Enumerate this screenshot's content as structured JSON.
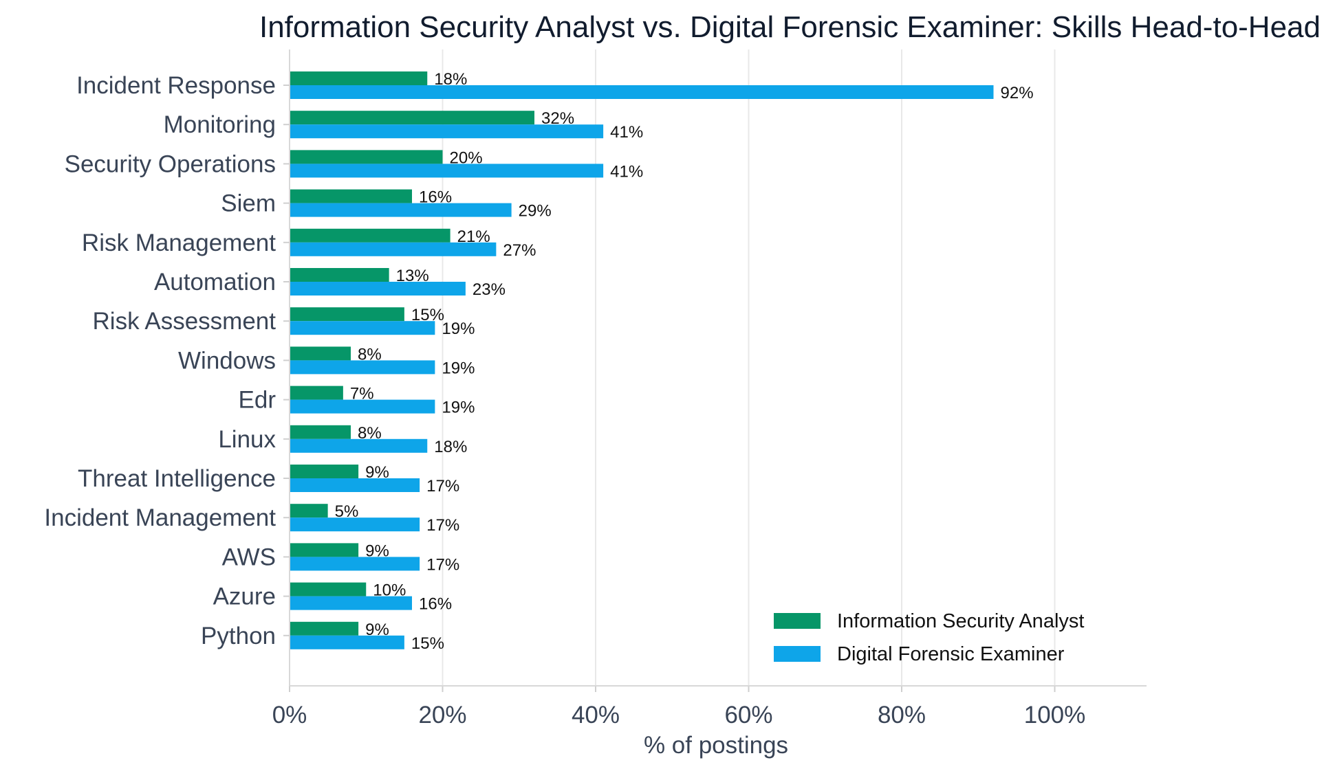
{
  "chart_data": {
    "type": "bar",
    "orientation": "horizontal",
    "title": "Information Security Analyst vs. Digital Forensic Examiner: Skills Head-to-Head",
    "xlabel": "% of postings",
    "ylabel": "",
    "xlim": [
      0,
      112
    ],
    "xticks": [
      0,
      20,
      40,
      60,
      80,
      100
    ],
    "xtick_labels": [
      "0%",
      "20%",
      "40%",
      "60%",
      "80%",
      "100%"
    ],
    "grid": "vertical",
    "legend_position": "bottom-right",
    "categories": [
      "Incident Response",
      "Monitoring",
      "Security Operations",
      "Siem",
      "Risk Management",
      "Automation",
      "Risk Assessment",
      "Windows",
      "Edr",
      "Linux",
      "Threat Intelligence",
      "Incident Management",
      "AWS",
      "Azure",
      "Python"
    ],
    "series": [
      {
        "name": "Information Security Analyst",
        "color": "#069668",
        "values": [
          18,
          32,
          20,
          16,
          21,
          13,
          15,
          8,
          7,
          8,
          9,
          5,
          9,
          10,
          9
        ],
        "labels": [
          "18%",
          "32%",
          "20%",
          "16%",
          "21%",
          "13%",
          "15%",
          "8%",
          "7%",
          "8%",
          "9%",
          "5%",
          "9%",
          "10%",
          "9%"
        ]
      },
      {
        "name": "Digital Forensic Examiner",
        "color": "#0ea5e9",
        "values": [
          92,
          41,
          41,
          29,
          27,
          23,
          19,
          19,
          19,
          18,
          17,
          17,
          17,
          16,
          15
        ],
        "labels": [
          "92%",
          "41%",
          "41%",
          "29%",
          "27%",
          "23%",
          "19%",
          "19%",
          "19%",
          "18%",
          "17%",
          "17%",
          "17%",
          "16%",
          "15%"
        ]
      }
    ]
  }
}
